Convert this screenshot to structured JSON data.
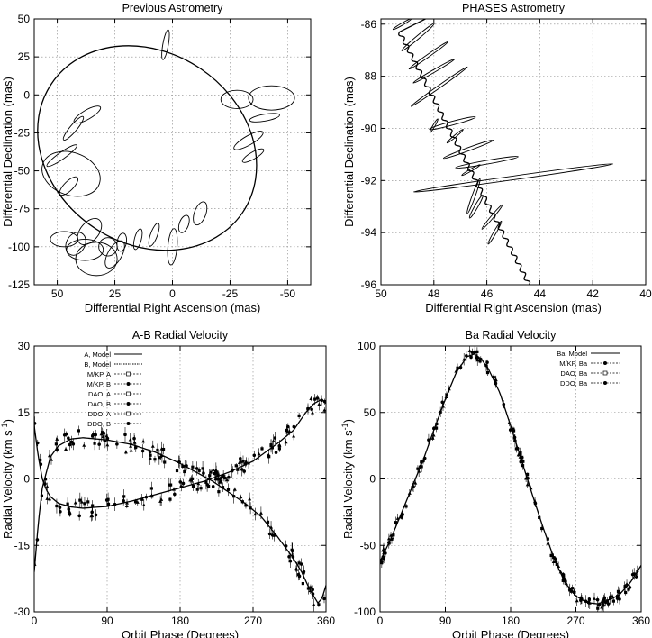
{
  "chart_data": [
    {
      "type": "scatter",
      "title": "Previous Astrometry",
      "xlabel": "Differential Right Ascension (mas)",
      "ylabel": "Differential Declination (mas)",
      "xlim": [
        60,
        -60
      ],
      "ylim": [
        -125,
        50
      ],
      "xticks": [
        50,
        25,
        0,
        -25,
        -50
      ],
      "xtick_labels": [
        "50",
        "25",
        "0",
        "-25",
        "-50"
      ],
      "yticks": [
        50,
        25,
        0,
        -25,
        -50,
        -75,
        -100,
        -125
      ],
      "ytick_labels": [
        "50",
        "25",
        "0",
        "-25",
        "-50",
        "-75",
        "-100",
        "-125"
      ],
      "grid": true,
      "orbit": {
        "center": [
          11,
          -35
        ],
        "semi_axes": [
          50,
          63
        ],
        "tilt_deg": 34
      },
      "ellipses": [
        [
          3,
          33,
          1.2,
          10,
          10
        ],
        [
          37,
          -13,
          2,
          10,
          60
        ],
        [
          43,
          -22,
          1.5,
          10,
          40
        ],
        [
          48,
          -40,
          1.5,
          12,
          55
        ],
        [
          44,
          -52,
          13,
          14,
          20
        ],
        [
          45,
          -60,
          2,
          8,
          45
        ],
        [
          47,
          -95,
          6,
          5,
          0
        ],
        [
          42,
          -98,
          4,
          8,
          30
        ],
        [
          38,
          -102,
          8,
          7,
          0
        ],
        [
          33,
          -108,
          9,
          11,
          0
        ],
        [
          28,
          -100,
          4,
          6,
          20
        ],
        [
          22,
          -97,
          2,
          6,
          10
        ],
        [
          15,
          -95,
          1.5,
          7,
          15
        ],
        [
          8,
          -92,
          1.5,
          8,
          20
        ],
        [
          -5,
          -85,
          2,
          6,
          20
        ],
        [
          -12,
          -78,
          2.5,
          8,
          20
        ],
        [
          -28,
          -3,
          7,
          6,
          0
        ],
        [
          -43,
          -2,
          10,
          8,
          0
        ],
        [
          -40,
          -15,
          1.5,
          10,
          80
        ],
        [
          -33,
          -30,
          2,
          11,
          60
        ],
        [
          -35,
          -40,
          1.5,
          8,
          60
        ],
        [
          0,
          -100,
          2,
          12,
          5
        ],
        [
          36,
          -90,
          4,
          10,
          40
        ],
        [
          25,
          -105,
          3,
          10,
          30
        ]
      ]
    },
    {
      "type": "scatter",
      "title": "PHASES Astrometry",
      "xlabel": "Differential Right Ascension (mas)",
      "ylabel": "Differential Declination (mas)",
      "xlim": [
        50,
        40
      ],
      "ylim": [
        -96,
        -85.8
      ],
      "xticks": [
        50,
        48,
        46,
        44,
        42,
        40
      ],
      "xtick_labels": [
        "50",
        "48",
        "46",
        "44",
        "42",
        "40"
      ],
      "yticks": [
        -86,
        -88,
        -90,
        -92,
        -94,
        -96
      ],
      "ytick_labels": [
        "-86",
        "-88",
        "-90",
        "-92",
        "-94",
        "-96"
      ],
      "grid": true,
      "track": {
        "start": [
          49.3,
          -86.3
        ],
        "end": [
          44.4,
          -96
        ],
        "wobble": 0.12,
        "wobble_cycles": 30
      },
      "ellipses": [
        [
          48.6,
          -86.5,
          0.06,
          0.8,
          50
        ],
        [
          48.2,
          -87.2,
          0.05,
          0.9,
          55
        ],
        [
          48.0,
          -87.8,
          0.05,
          0.9,
          60
        ],
        [
          47.8,
          -88.4,
          0.05,
          1.3,
          55
        ],
        [
          47.3,
          -89.8,
          0.07,
          0.9,
          75
        ],
        [
          46.7,
          -90.8,
          0.06,
          1.0,
          70
        ],
        [
          46.0,
          -91.3,
          0.07,
          1.2,
          80
        ],
        [
          45.0,
          -91.9,
          0.07,
          3.8,
          82
        ],
        [
          46.5,
          -92.6,
          0.06,
          0.7,
          20
        ],
        [
          46.4,
          -93.0,
          0.06,
          0.5,
          30
        ],
        [
          45.8,
          -93.4,
          0.05,
          0.6,
          40
        ],
        [
          45.7,
          -94.0,
          0.05,
          0.5,
          30
        ],
        [
          48.0,
          -89.9,
          0.04,
          0.3,
          30
        ],
        [
          47.2,
          -90.3,
          0.04,
          0.4,
          50
        ],
        [
          46.6,
          -91.6,
          0.04,
          0.4,
          60
        ],
        [
          49.2,
          -86.0,
          0.04,
          0.4,
          60
        ]
      ]
    },
    {
      "type": "line",
      "title": "A-B Radial Velocity",
      "xlabel": "Orbit Phase (Degrees)",
      "ylabel": "Radial Velocity (km s",
      "ylabel_sup": "-1",
      "ylabel_tail": ")",
      "xlim": [
        0,
        360
      ],
      "ylim": [
        -30,
        30
      ],
      "xticks": [
        0,
        90,
        180,
        270,
        360
      ],
      "xtick_labels": [
        "0",
        "90",
        "180",
        "270",
        "360"
      ],
      "yticks": [
        30,
        15,
        0,
        -15,
        -30
      ],
      "ytick_labels": [
        "30",
        "15",
        "0",
        "-15",
        "-30"
      ],
      "grid": true,
      "legend": {
        "placement": "top-left",
        "entries": [
          "A, Model",
          "B, Model",
          "M/KP, A",
          "M/KP, B",
          "DAO, A",
          "DAO, B",
          "DDO, A",
          "DDO, B"
        ]
      },
      "series": [
        {
          "name": "A, Model",
          "x": [
            0,
            5,
            10,
            20,
            30,
            45,
            60,
            90,
            120,
            150,
            180,
            200,
            220,
            240,
            260,
            280,
            300,
            320,
            330,
            340,
            350,
            355,
            360
          ],
          "values": [
            -21,
            -10,
            -2,
            5,
            7.5,
            9,
            9.3,
            8.8,
            7.8,
            6,
            3.5,
            1.5,
            -0.5,
            -3,
            -5.5,
            -8.5,
            -13,
            -18,
            -21,
            -25,
            -28,
            -27,
            -24
          ]
        },
        {
          "name": "B, Model",
          "x": [
            0,
            5,
            10,
            15,
            20,
            30,
            45,
            60,
            90,
            120,
            150,
            180,
            210,
            240,
            270,
            300,
            320,
            335,
            345,
            355,
            360
          ],
          "values": [
            12,
            5,
            0,
            -2.5,
            -4,
            -5.5,
            -6.3,
            -6.6,
            -6.2,
            -5,
            -3.5,
            -2,
            -0.5,
            1.5,
            4,
            8,
            11,
            15,
            17,
            18,
            17
          ]
        }
      ]
    },
    {
      "type": "line",
      "title": "Ba Radial Velocity",
      "xlabel": "Orbit Phase (Degrees)",
      "ylabel": "Radial Velocity (km s",
      "ylabel_sup": "-1",
      "ylabel_tail": ")",
      "xlim": [
        0,
        360
      ],
      "ylim": [
        -100,
        100
      ],
      "xticks": [
        0,
        90,
        180,
        270,
        360
      ],
      "xtick_labels": [
        "0",
        "90",
        "180",
        "270",
        "360"
      ],
      "yticks": [
        100,
        50,
        0,
        -50,
        -100
      ],
      "ytick_labels": [
        "100",
        "50",
        "0",
        "-50",
        "-100"
      ],
      "grid": true,
      "legend": {
        "placement": "top-right",
        "entries": [
          "Ba, Model",
          "M/KP, Ba",
          "DAO, Ba",
          "DDO, Ba"
        ]
      },
      "series": [
        {
          "name": "Ba, Model",
          "x": [
            0,
            15,
            30,
            45,
            60,
            75,
            90,
            105,
            120,
            130,
            140,
            150,
            165,
            180,
            195,
            210,
            225,
            240,
            255,
            270,
            285,
            300,
            310,
            320,
            330,
            345,
            360
          ],
          "values": [
            -62,
            -45,
            -25,
            -5,
            15,
            38,
            60,
            80,
            92,
            94,
            90,
            82,
            65,
            40,
            14,
            -12,
            -37,
            -60,
            -78,
            -88,
            -93,
            -94,
            -92,
            -90,
            -87,
            -78,
            -65
          ]
        }
      ]
    }
  ]
}
